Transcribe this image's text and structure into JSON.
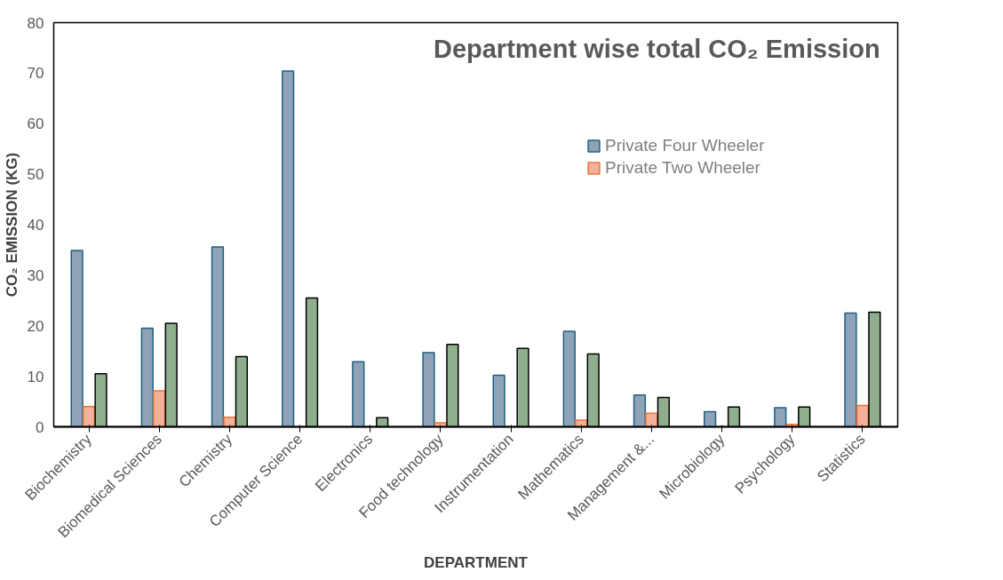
{
  "chart_data": {
    "type": "bar",
    "title": "Department wise total CO₂ Emission",
    "xlabel": "DEPARTMENT",
    "ylabel": "CO₂ EMISSION (KG)",
    "categories": [
      "Biochemistry",
      "Biomedical Sciences",
      "Chemistry",
      "Computer Science",
      "Electronics",
      "Food technology",
      "Instrumentation",
      "Mathematics",
      "Management &...",
      "Microbiology",
      "Psychology",
      "Statistics"
    ],
    "series": [
      {
        "name": "Private Four Wheeler",
        "color": "#8fa3b8",
        "values": [
          34.9,
          19.5,
          35.6,
          70.4,
          12.9,
          14.7,
          10.2,
          18.9,
          6.3,
          3.0,
          3.8,
          22.5
        ]
      },
      {
        "name": "Private Two Wheeler",
        "color": "#f4b09a",
        "values": [
          4.0,
          7.1,
          1.9,
          0,
          0,
          0.8,
          0,
          1.3,
          2.7,
          0,
          0.5,
          4.2
        ]
      },
      {
        "color": "#8fae8e",
        "values": [
          10.5,
          20.5,
          13.9,
          25.5,
          1.8,
          16.3,
          15.5,
          14.4,
          5.8,
          3.9,
          3.9,
          22.7
        ]
      }
    ],
    "ylim": [
      0,
      80
    ],
    "yticks": [
      0,
      10,
      20,
      30,
      40,
      50,
      60,
      70,
      80
    ],
    "grid": false,
    "legend": "top right"
  }
}
